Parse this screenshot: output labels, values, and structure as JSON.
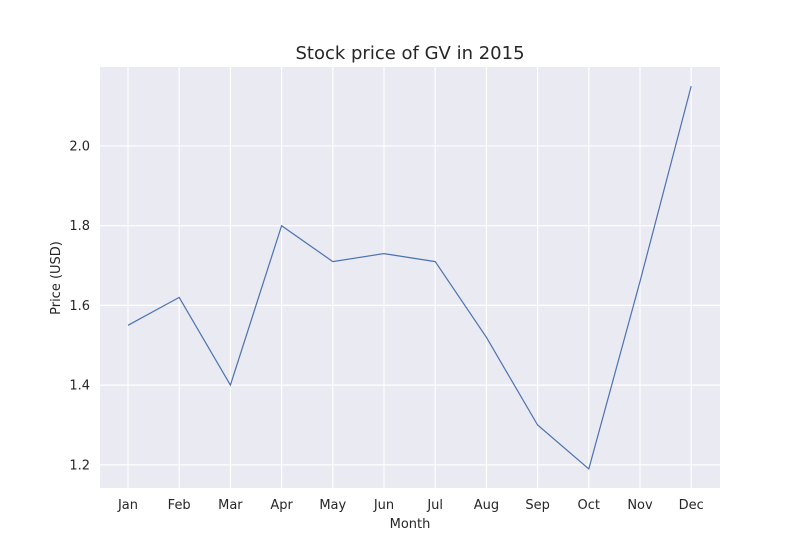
{
  "chart_data": {
    "type": "line",
    "title": "Stock price of GV in 2015",
    "xlabel": "Month",
    "ylabel": "Price (USD)",
    "categories": [
      "Jan",
      "Feb",
      "Mar",
      "Apr",
      "May",
      "Jun",
      "Jul",
      "Aug",
      "Sep",
      "Oct",
      "Nov",
      "Dec"
    ],
    "values": [
      1.55,
      1.62,
      1.4,
      1.8,
      1.71,
      1.73,
      1.71,
      1.52,
      1.3,
      1.19,
      1.66,
      2.15
    ],
    "yticks": [
      "1.2",
      "1.4",
      "1.6",
      "1.8",
      "2.0"
    ],
    "ylim": [
      1.142,
      2.198
    ],
    "grid": true,
    "colors": {
      "line": "#4c72b0",
      "plot_background": "#eaeaf2",
      "grid": "#ffffff"
    }
  }
}
